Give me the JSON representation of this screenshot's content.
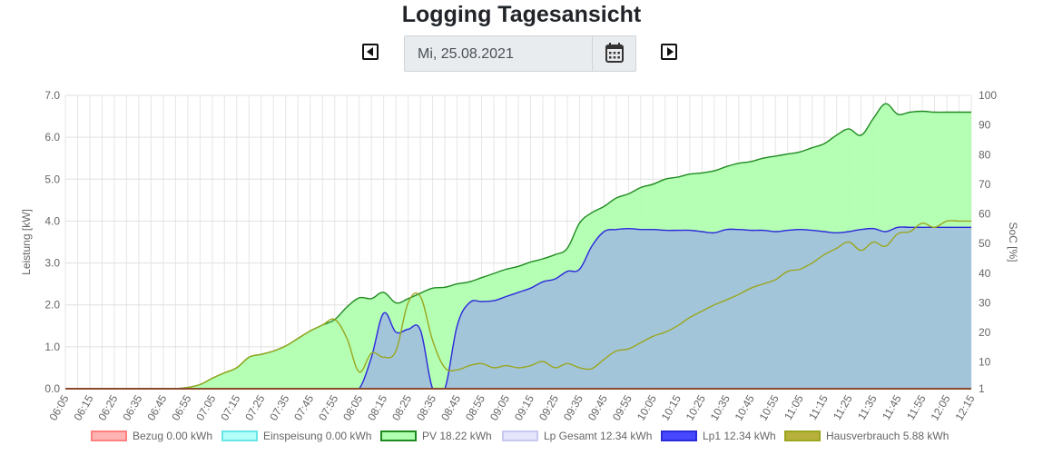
{
  "page": {
    "title": "Logging Tagesansicht"
  },
  "date_picker": {
    "value": "Mi, 25.08.2021"
  },
  "chart_data": {
    "type": "area",
    "ylabel": "Leistung [kW]",
    "y2label": "SoC [%]",
    "ylim": [
      0,
      7
    ],
    "y2lim": [
      1,
      100
    ],
    "yticks": [
      "0.0",
      "1.0",
      "2.0",
      "3.0",
      "4.0",
      "5.0",
      "6.0",
      "7.0"
    ],
    "y2ticks": [
      "1",
      "10",
      "20",
      "30",
      "40",
      "50",
      "60",
      "70",
      "80",
      "90",
      "100"
    ],
    "grid": true,
    "legend_position": "bottom",
    "x_labels": [
      "06:05",
      "06:15",
      "06:25",
      "06:35",
      "06:45",
      "06:55",
      "07:05",
      "07:15",
      "07:25",
      "07:35",
      "07:45",
      "07:55",
      "08:05",
      "08:15",
      "08:25",
      "08:35",
      "08:45",
      "08:55",
      "09:05",
      "09:15",
      "09:25",
      "09:35",
      "09:45",
      "09:55",
      "10:05",
      "10:15",
      "10:25",
      "10:35",
      "10:45",
      "10:55",
      "11:05",
      "11:15",
      "11:25",
      "11:35",
      "11:45",
      "11:55",
      "12:05",
      "12:15"
    ],
    "x": [
      "06:05",
      "06:10",
      "06:15",
      "06:20",
      "06:25",
      "06:30",
      "06:35",
      "06:40",
      "06:45",
      "06:50",
      "06:55",
      "07:00",
      "07:05",
      "07:10",
      "07:15",
      "07:20",
      "07:25",
      "07:30",
      "07:35",
      "07:40",
      "07:45",
      "07:50",
      "07:55",
      "08:00",
      "08:05",
      "08:10",
      "08:15",
      "08:20",
      "08:25",
      "08:30",
      "08:35",
      "08:40",
      "08:45",
      "08:50",
      "08:55",
      "09:00",
      "09:05",
      "09:10",
      "09:15",
      "09:20",
      "09:25",
      "09:30",
      "09:35",
      "09:40",
      "09:45",
      "09:50",
      "09:55",
      "10:00",
      "10:05",
      "10:10",
      "10:15",
      "10:20",
      "10:25",
      "10:30",
      "10:35",
      "10:40",
      "10:45",
      "10:50",
      "10:55",
      "11:00",
      "11:05",
      "11:10",
      "11:15",
      "11:20",
      "11:25",
      "11:30",
      "11:35",
      "11:40",
      "11:45",
      "11:50",
      "11:55",
      "12:00",
      "12:05",
      "12:10",
      "12:15"
    ],
    "series": [
      {
        "name": "Bezug 0.00 kWh",
        "color": "#ff8080",
        "fill": "#ffb3b3",
        "values": [
          0,
          0,
          0,
          0,
          0,
          0,
          0,
          0,
          0,
          0,
          0,
          0,
          0,
          0,
          0,
          0,
          0,
          0,
          0,
          0,
          0,
          0,
          0,
          0,
          0,
          0,
          0,
          0,
          0,
          0,
          0,
          0,
          0,
          0,
          0,
          0,
          0,
          0,
          0,
          0,
          0,
          0,
          0,
          0,
          0,
          0,
          0,
          0,
          0,
          0,
          0,
          0,
          0,
          0,
          0,
          0,
          0,
          0,
          0,
          0,
          0,
          0,
          0,
          0,
          0,
          0,
          0,
          0,
          0,
          0,
          0,
          0,
          0,
          0,
          0
        ]
      },
      {
        "name": "Einspeisung 0.00 kWh",
        "color": "#66e6e6",
        "fill": "#b3fffa",
        "values": [
          0,
          0,
          0,
          0,
          0,
          0,
          0,
          0,
          0,
          0,
          0,
          0,
          0,
          0,
          0,
          0,
          0,
          0,
          0,
          0,
          0,
          0,
          0,
          0,
          0,
          0,
          0,
          0,
          0,
          0,
          0,
          0,
          0,
          0,
          0,
          0,
          0,
          0,
          0,
          0,
          0,
          0,
          0,
          0,
          0,
          0,
          0,
          0,
          0,
          0,
          0,
          0,
          0,
          0,
          0,
          0,
          0,
          0,
          0,
          0,
          0,
          0,
          0,
          0,
          0,
          0,
          0,
          0,
          0,
          0,
          0,
          0,
          0,
          0,
          0
        ]
      },
      {
        "name": "PV 18.22 kWh",
        "color": "#1f8a1f",
        "fill": "#b0ffb0",
        "values": [
          0,
          0,
          0,
          0,
          0,
          0,
          0,
          0,
          0,
          0,
          0.03,
          0.1,
          0.25,
          0.38,
          0.5,
          0.75,
          0.82,
          0.9,
          1.02,
          1.2,
          1.38,
          1.52,
          1.65,
          1.95,
          2.17,
          2.15,
          2.3,
          2.05,
          2.15,
          2.28,
          2.4,
          2.42,
          2.5,
          2.55,
          2.65,
          2.75,
          2.85,
          2.92,
          3.02,
          3.1,
          3.2,
          3.35,
          3.95,
          4.2,
          4.35,
          4.55,
          4.65,
          4.8,
          4.88,
          5.0,
          5.05,
          5.12,
          5.15,
          5.2,
          5.3,
          5.38,
          5.42,
          5.5,
          5.55,
          5.6,
          5.65,
          5.75,
          5.85,
          6.05,
          6.2,
          6.05,
          6.45,
          6.8,
          6.55,
          6.6,
          6.62,
          6.6,
          6.6,
          6.6,
          6.6
        ]
      },
      {
        "name": "Lp Gesamt 12.34 kWh",
        "color": "#c8c8f0",
        "fill": "#e4e4fa",
        "values": [
          0,
          0,
          0,
          0,
          0,
          0,
          0,
          0,
          0,
          0,
          0,
          0,
          0,
          0,
          0,
          0,
          0,
          0,
          0,
          0,
          0,
          0,
          0,
          0,
          0,
          0.75,
          1.8,
          1.35,
          1.42,
          1.4,
          0,
          0,
          1.5,
          2.05,
          2.08,
          2.1,
          2.2,
          2.3,
          2.4,
          2.55,
          2.62,
          2.8,
          2.85,
          3.4,
          3.75,
          3.8,
          3.82,
          3.8,
          3.8,
          3.78,
          3.78,
          3.78,
          3.75,
          3.72,
          3.8,
          3.8,
          3.78,
          3.78,
          3.75,
          3.78,
          3.8,
          3.78,
          3.75,
          3.72,
          3.75,
          3.8,
          3.82,
          3.75,
          3.85,
          3.85,
          3.85,
          3.85,
          3.85,
          3.85,
          3.85
        ]
      },
      {
        "name": "Lp1 12.34 kWh",
        "color": "#2b2bd8",
        "fill": "#4848ff",
        "values": [
          0,
          0,
          0,
          0,
          0,
          0,
          0,
          0,
          0,
          0,
          0,
          0,
          0,
          0,
          0,
          0,
          0,
          0,
          0,
          0,
          0,
          0,
          0,
          0,
          0,
          0.75,
          1.8,
          1.35,
          1.42,
          1.4,
          0,
          0,
          1.5,
          2.05,
          2.08,
          2.1,
          2.2,
          2.3,
          2.4,
          2.55,
          2.62,
          2.8,
          2.85,
          3.4,
          3.75,
          3.8,
          3.82,
          3.8,
          3.8,
          3.78,
          3.78,
          3.78,
          3.75,
          3.72,
          3.8,
          3.8,
          3.78,
          3.78,
          3.75,
          3.78,
          3.8,
          3.78,
          3.75,
          3.72,
          3.75,
          3.8,
          3.82,
          3.75,
          3.85,
          3.85,
          3.85,
          3.85,
          3.85,
          3.85,
          3.85
        ]
      },
      {
        "name": "Hausverbrauch 5.88 kWh",
        "color": "#9aa61e",
        "fill": "#b8b03c",
        "values": [
          0,
          0,
          0,
          0,
          0,
          0,
          0,
          0,
          0,
          0,
          0.03,
          0.1,
          0.25,
          0.38,
          0.5,
          0.75,
          0.82,
          0.9,
          1.02,
          1.2,
          1.38,
          1.52,
          1.65,
          1.2,
          0.4,
          0.85,
          0.75,
          0.9,
          2.05,
          2.2,
          1.15,
          0.5,
          0.45,
          0.55,
          0.6,
          0.5,
          0.55,
          0.5,
          0.55,
          0.65,
          0.5,
          0.6,
          0.5,
          0.48,
          0.7,
          0.9,
          0.95,
          1.1,
          1.25,
          1.35,
          1.5,
          1.7,
          1.85,
          2.0,
          2.12,
          2.25,
          2.4,
          2.5,
          2.6,
          2.8,
          2.85,
          3.0,
          3.2,
          3.35,
          3.5,
          3.3,
          3.5,
          3.4,
          3.7,
          3.75,
          3.95,
          3.85,
          4.0,
          4.0,
          4.0
        ]
      }
    ]
  }
}
